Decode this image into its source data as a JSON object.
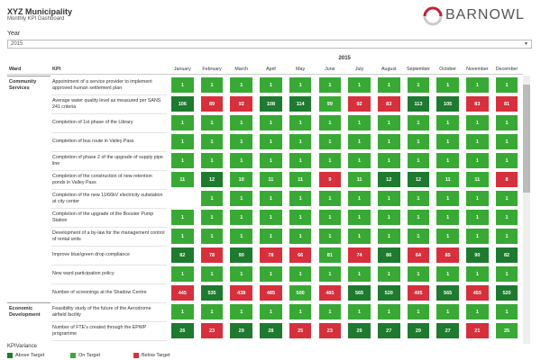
{
  "header": {
    "title": "XYZ Municipality",
    "subtitle": "Monthly KPI Dashboard"
  },
  "logo": "BARNOWL",
  "filter": {
    "label": "Year",
    "value": "2015"
  },
  "table": {
    "year": "2015",
    "columns": [
      "Ward",
      "KPI"
    ],
    "months": [
      "January",
      "February",
      "March",
      "April",
      "May",
      "June",
      "July",
      "August",
      "September",
      "October",
      "November",
      "December"
    ],
    "rows": [
      {
        "ward": "Community Services",
        "kpi": "Appointment of a service provider to implement approved human settlement plan",
        "values": [
          1,
          1,
          1,
          1,
          1,
          1,
          1,
          1,
          1,
          1,
          1,
          1
        ],
        "status": [
          "On Target",
          "On Target",
          "On Target",
          "On Target",
          "On Target",
          "On Target",
          "On Target",
          "On Target",
          "On Target",
          "On Target",
          "On Target",
          "On Target"
        ]
      },
      {
        "kpi": "Average water quality level as measured per SANS 241 criteria",
        "values": [
          106,
          89,
          92,
          108,
          114,
          99,
          92,
          83,
          113,
          105,
          83,
          81
        ],
        "status": [
          "Above Target",
          "Below Target",
          "Below Target",
          "Above Target",
          "Above Target",
          "On Target",
          "Below Target",
          "Below Target",
          "Above Target",
          "Above Target",
          "Below Target",
          "Below Target"
        ]
      },
      {
        "kpi": "Completion of 1st phase of the Library",
        "values": [
          1,
          1,
          1,
          1,
          1,
          1,
          1,
          1,
          1,
          1,
          1,
          1
        ],
        "status": [
          "On Target",
          "On Target",
          "On Target",
          "On Target",
          "On Target",
          "On Target",
          "On Target",
          "On Target",
          "On Target",
          "On Target",
          "On Target",
          "On Target"
        ]
      },
      {
        "kpi": "Completion of bus route in Valley Pass",
        "values": [
          1,
          1,
          1,
          1,
          1,
          1,
          1,
          1,
          1,
          1,
          1,
          1
        ],
        "status": [
          "On Target",
          "On Target",
          "On Target",
          "On Target",
          "On Target",
          "On Target",
          "On Target",
          "On Target",
          "On Target",
          "On Target",
          "On Target",
          "On Target"
        ]
      },
      {
        "kpi": "Completion of phase 2 of the upgrade of supply pipe line",
        "values": [
          1,
          1,
          1,
          1,
          1,
          1,
          1,
          1,
          1,
          1,
          1,
          1
        ],
        "status": [
          "On Target",
          "On Target",
          "On Target",
          "On Target",
          "On Target",
          "On Target",
          "On Target",
          "On Target",
          "On Target",
          "On Target",
          "On Target",
          "On Target"
        ]
      },
      {
        "kpi": "Completion of the construction of new retention ponds in Valley Pass",
        "values": [
          11,
          12,
          10,
          11,
          11,
          9,
          11,
          12,
          12,
          11,
          11,
          8
        ],
        "status": [
          "On Target",
          "Above Target",
          "On Target",
          "On Target",
          "On Target",
          "Below Target",
          "On Target",
          "Above Target",
          "Above Target",
          "On Target",
          "On Target",
          "Below Target"
        ]
      },
      {
        "kpi": "Completion of the new 11/66kV electricity substation at city center",
        "values": [
          null,
          1,
          1,
          1,
          1,
          1,
          1,
          1,
          1,
          1,
          1,
          1
        ],
        "status": [
          null,
          "On Target",
          "On Target",
          "On Target",
          "On Target",
          "On Target",
          "On Target",
          "On Target",
          "On Target",
          "On Target",
          "On Target",
          "On Target"
        ]
      },
      {
        "kpi": "Completion of the upgrade of the Booster Pump Station",
        "values": [
          1,
          1,
          1,
          1,
          1,
          1,
          1,
          1,
          1,
          1,
          1,
          1
        ],
        "status": [
          "On Target",
          "On Target",
          "On Target",
          "On Target",
          "On Target",
          "On Target",
          "On Target",
          "On Target",
          "On Target",
          "On Target",
          "On Target",
          "On Target"
        ]
      },
      {
        "kpi": "Development of a by-law for the management control of rental units",
        "values": [
          1,
          1,
          1,
          1,
          1,
          1,
          1,
          1,
          1,
          1,
          1,
          1
        ],
        "status": [
          "On Target",
          "On Target",
          "On Target",
          "On Target",
          "On Target",
          "On Target",
          "On Target",
          "On Target",
          "On Target",
          "On Target",
          "On Target",
          "On Target"
        ]
      },
      {
        "kpi": "Improve blue/green drop compliance",
        "values": [
          82,
          78,
          90,
          78,
          66,
          81,
          74,
          86,
          64,
          85,
          90,
          82
        ],
        "status": [
          "Above Target",
          "Below Target",
          "Above Target",
          "Below Target",
          "Below Target",
          "On Target",
          "Below Target",
          "Above Target",
          "Below Target",
          "Below Target",
          "Above Target",
          "Above Target"
        ]
      },
      {
        "kpi": "New ward participation policy",
        "values": [
          1,
          1,
          1,
          1,
          1,
          1,
          1,
          1,
          1,
          1,
          1,
          1
        ],
        "status": [
          "On Target",
          "On Target",
          "On Target",
          "On Target",
          "On Target",
          "On Target",
          "On Target",
          "On Target",
          "On Target",
          "On Target",
          "On Target",
          "On Target"
        ]
      },
      {
        "kpi": "Number of screenings at the Shadow Centre",
        "values": [
          445,
          535,
          438,
          485,
          500,
          485,
          565,
          520,
          495,
          565,
          455,
          520
        ],
        "status": [
          "Below Target",
          "Above Target",
          "Below Target",
          "Below Target",
          "On Target",
          "Below Target",
          "Above Target",
          "Above Target",
          "Below Target",
          "Above Target",
          "Below Target",
          "Above Target"
        ]
      },
      {
        "ward": "Economic Development",
        "kpi": "Feasibility study of the future of the Aerodrome airfield facility",
        "values": [
          1,
          1,
          1,
          1,
          1,
          1,
          1,
          1,
          1,
          1,
          1,
          1
        ],
        "status": [
          "On Target",
          "On Target",
          "On Target",
          "On Target",
          "On Target",
          "On Target",
          "On Target",
          "On Target",
          "On Target",
          "On Target",
          "On Target",
          "On Target"
        ]
      },
      {
        "kpi": "Number of FTE's created through the EPWP programme",
        "values": [
          26,
          23,
          29,
          28,
          25,
          23,
          29,
          27,
          29,
          27,
          21,
          25
        ],
        "status": [
          "Above Target",
          "Below Target",
          "Above Target",
          "Above Target",
          "Below Target",
          "Below Target",
          "Above Target",
          "Above Target",
          "Above Target",
          "Above Target",
          "Below Target",
          "On Target"
        ]
      }
    ]
  },
  "legend": {
    "title": "KPIVariance",
    "items": [
      {
        "label": "Above Target",
        "color": "#1e7a2f"
      },
      {
        "label": "On Target",
        "color": "#39a935"
      },
      {
        "label": "Below Target",
        "color": "#d6303c"
      }
    ]
  }
}
